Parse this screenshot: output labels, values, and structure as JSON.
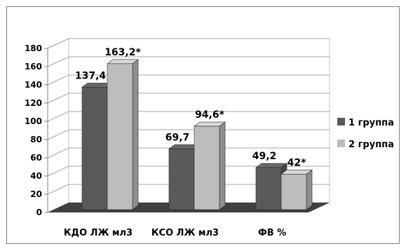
{
  "chart_data": {
    "type": "bar",
    "categories": [
      "КДО ЛЖ мл3",
      "КСО ЛЖ мл3",
      "ФВ %"
    ],
    "series": [
      {
        "name": "1 группа",
        "values": [
          137.4,
          69.7,
          49.2
        ],
        "labels": [
          "137,4",
          "69,7",
          "49,2"
        ],
        "color": "#5a5a5a"
      },
      {
        "name": "2 группа",
        "values": [
          163.2,
          94.6,
          42
        ],
        "labels": [
          "163,2*",
          "94,6*",
          "42*"
        ],
        "color": "#bdbdbd"
      }
    ],
    "yticks": [
      "0",
      "20",
      "40",
      "60",
      "80",
      "100",
      "120",
      "140",
      "160",
      "180"
    ],
    "ylim": [
      0,
      180
    ],
    "grid": true,
    "legend": "right",
    "style": "3d-clustered-column"
  }
}
